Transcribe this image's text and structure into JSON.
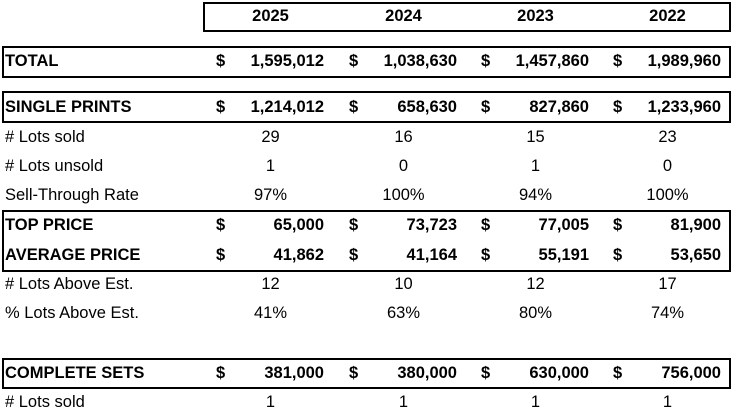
{
  "currency_symbol": "$",
  "header": {
    "years": [
      "2025",
      "2024",
      "2023",
      "2022"
    ]
  },
  "rows": [
    {
      "label": "TOTAL",
      "values": [
        "1,595,012",
        "1,038,630",
        "1,457,860",
        "1,989,960"
      ]
    },
    {
      "label": "SINGLE PRINTS",
      "values": [
        "1,214,012",
        "658,630",
        "827,860",
        "1,233,960"
      ]
    },
    {
      "label": "# Lots sold",
      "values": [
        29,
        16,
        15,
        23
      ]
    },
    {
      "label": "# Lots unsold",
      "values": [
        1,
        0,
        1,
        0
      ]
    },
    {
      "label": "Sell-Through Rate",
      "values": [
        "97%",
        "100%",
        "94%",
        "100%"
      ]
    },
    {
      "label": "TOP PRICE",
      "values": [
        "65,000",
        "73,723",
        "77,005",
        "81,900"
      ]
    },
    {
      "label": "AVERAGE PRICE",
      "values": [
        "41,862",
        "41,164",
        "55,191",
        "53,650"
      ]
    },
    {
      "label": "# Lots Above Est.",
      "values": [
        12,
        10,
        12,
        17
      ]
    },
    {
      "label": "% Lots Above Est.",
      "values": [
        "41%",
        "63%",
        "80%",
        "74%"
      ]
    },
    {
      "label": "COMPLETE SETS",
      "values": [
        "381,000",
        "380,000",
        "630,000",
        "756,000"
      ]
    },
    {
      "label": "# Lots sold",
      "values": [
        1,
        1,
        1,
        1
      ]
    }
  ]
}
